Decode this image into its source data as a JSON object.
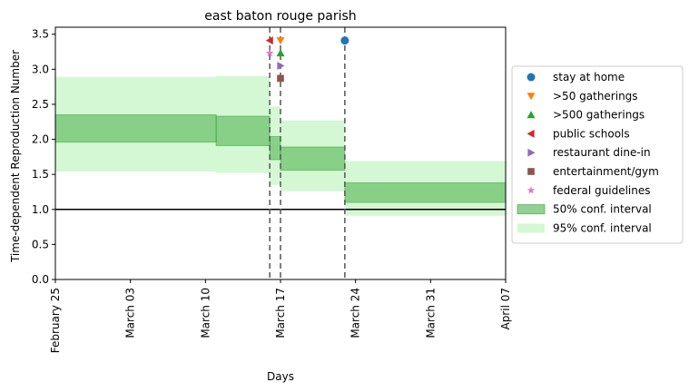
{
  "chart_data": {
    "type": "area",
    "title": "east baton rouge parish",
    "xlabel": "Days",
    "ylabel": "Time-dependent Reproduction Number",
    "x_range": [
      "2020-02-25",
      "2020-04-07"
    ],
    "ylim": [
      0.0,
      3.6
    ],
    "y_ticks": [
      0.0,
      0.5,
      1.0,
      1.5,
      2.0,
      2.5,
      3.0,
      3.5
    ],
    "y_tick_labels": [
      "0.0",
      "0.5",
      "1.0",
      "1.5",
      "2.0",
      "2.5",
      "3.0",
      "3.5"
    ],
    "x_ticks": [
      "2020-02-25",
      "2020-03-03",
      "2020-03-10",
      "2020-03-17",
      "2020-03-24",
      "2020-03-31",
      "2020-04-07"
    ],
    "x_tick_labels": [
      "February 25",
      "March 03",
      "March 10",
      "March 17",
      "March 24",
      "March 31",
      "April 07"
    ],
    "grid": false,
    "legend_position": "outside right",
    "reference_line": {
      "y": 1.0,
      "color": "#000000"
    },
    "intervals": [
      {
        "start": "2020-02-25",
        "end": "2020-03-11",
        "ci50": [
          1.96,
          2.35
        ],
        "ci95": [
          1.54,
          2.89
        ]
      },
      {
        "start": "2020-03-11",
        "end": "2020-03-16",
        "ci50": [
          1.91,
          2.33
        ],
        "ci95": [
          1.52,
          2.9
        ]
      },
      {
        "start": "2020-03-16",
        "end": "2020-03-17",
        "ci50": [
          1.71,
          2.04
        ],
        "ci95": [
          1.35,
          2.47
        ]
      },
      {
        "start": "2020-03-17",
        "end": "2020-03-23",
        "ci50": [
          1.56,
          1.89
        ],
        "ci95": [
          1.26,
          2.27
        ]
      },
      {
        "start": "2020-03-23",
        "end": "2020-04-07",
        "ci50": [
          1.1,
          1.38
        ],
        "ci95": [
          0.91,
          1.69
        ]
      }
    ],
    "events": [
      {
        "name": "stay at home",
        "date": "2020-03-23",
        "y": 3.41,
        "marker": "circle",
        "color": "#1f77b4"
      },
      {
        "name": ">50 gatherings",
        "date": "2020-03-17",
        "y": 3.41,
        "marker": "triangle-down",
        "color": "#ff7f0e"
      },
      {
        "name": ">500 gatherings",
        "date": "2020-03-17",
        "y": 3.23,
        "marker": "triangle-up",
        "color": "#2ca02c"
      },
      {
        "name": "public schools",
        "date": "2020-03-16",
        "y": 3.41,
        "marker": "triangle-left",
        "color": "#d62728"
      },
      {
        "name": "restaurant dine-in",
        "date": "2020-03-17",
        "y": 3.05,
        "marker": "triangle-right",
        "color": "#9467bd"
      },
      {
        "name": "entertainment/gym",
        "date": "2020-03-17",
        "y": 2.87,
        "marker": "square",
        "color": "#8c564b"
      },
      {
        "name": "federal guidelines",
        "date": "2020-03-16",
        "y": 3.23,
        "marker": "star",
        "color": "#e377c2"
      }
    ],
    "event_lines": [
      "2020-03-16",
      "2020-03-17",
      "2020-03-23"
    ],
    "legend": [
      {
        "label": "stay at home",
        "marker": "circle",
        "color": "#1f77b4"
      },
      {
        "label": ">50 gatherings",
        "marker": "triangle-down",
        "color": "#ff7f0e"
      },
      {
        "label": ">500 gatherings",
        "marker": "triangle-up",
        "color": "#2ca02c"
      },
      {
        "label": "public schools",
        "marker": "triangle-left",
        "color": "#d62728"
      },
      {
        "label": "restaurant dine-in",
        "marker": "triangle-right",
        "color": "#9467bd"
      },
      {
        "label": "entertainment/gym",
        "marker": "square",
        "color": "#8c564b"
      },
      {
        "label": "federal guidelines",
        "marker": "star",
        "color": "#e377c2"
      },
      {
        "label": "50% conf. interval",
        "marker": "patch",
        "color": "#2ca02c"
      },
      {
        "label": "95% conf. interval",
        "marker": "patch",
        "color": "#98fb98"
      }
    ],
    "colors": {
      "ci50": "#2ca02c",
      "ci95": "#90ee90"
    }
  }
}
